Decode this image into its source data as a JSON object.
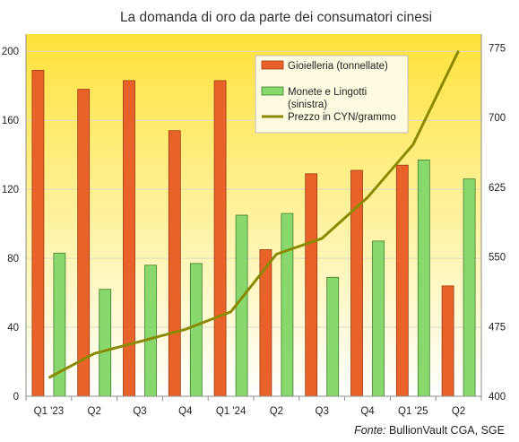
{
  "chart_data": {
    "type": "bar",
    "title": "La domanda di oro da parte dei consumatori cinesi",
    "categories": [
      "Q1 '23",
      "Q2",
      "Q3",
      "Q4",
      "Q1 '24",
      "Q2",
      "Q3",
      "Q4",
      "Q1 '25",
      "Q2"
    ],
    "series": [
      {
        "name": "Gioielleria (tonnellate)",
        "type": "bar",
        "axis": "left",
        "color": "#e8622a",
        "values": [
          189,
          178,
          183,
          154,
          183,
          85,
          129,
          131,
          134,
          64
        ]
      },
      {
        "name": "Monete e Lingotti (sinistra)",
        "type": "bar",
        "axis": "left",
        "color": "#88d86e",
        "values": [
          83,
          62,
          76,
          77,
          105,
          106,
          69,
          90,
          137,
          126
        ]
      },
      {
        "name": "Prezzo in CYN/grammo",
        "type": "line",
        "axis": "right",
        "color": "#8a8a00",
        "values": [
          420,
          446,
          459,
          472,
          491,
          553,
          570,
          614,
          671,
          772
        ]
      }
    ],
    "y_left": {
      "ylim": [
        0,
        210
      ],
      "ticks": [
        0,
        40,
        80,
        120,
        160,
        200
      ]
    },
    "y_right": {
      "ylim": [
        400,
        790
      ],
      "ticks": [
        400,
        475,
        550,
        625,
        700,
        775
      ]
    },
    "grid": true,
    "legend_position": "top-right",
    "source_label": "Fonte:",
    "source_text": "BullionVault CGA, SGE"
  }
}
